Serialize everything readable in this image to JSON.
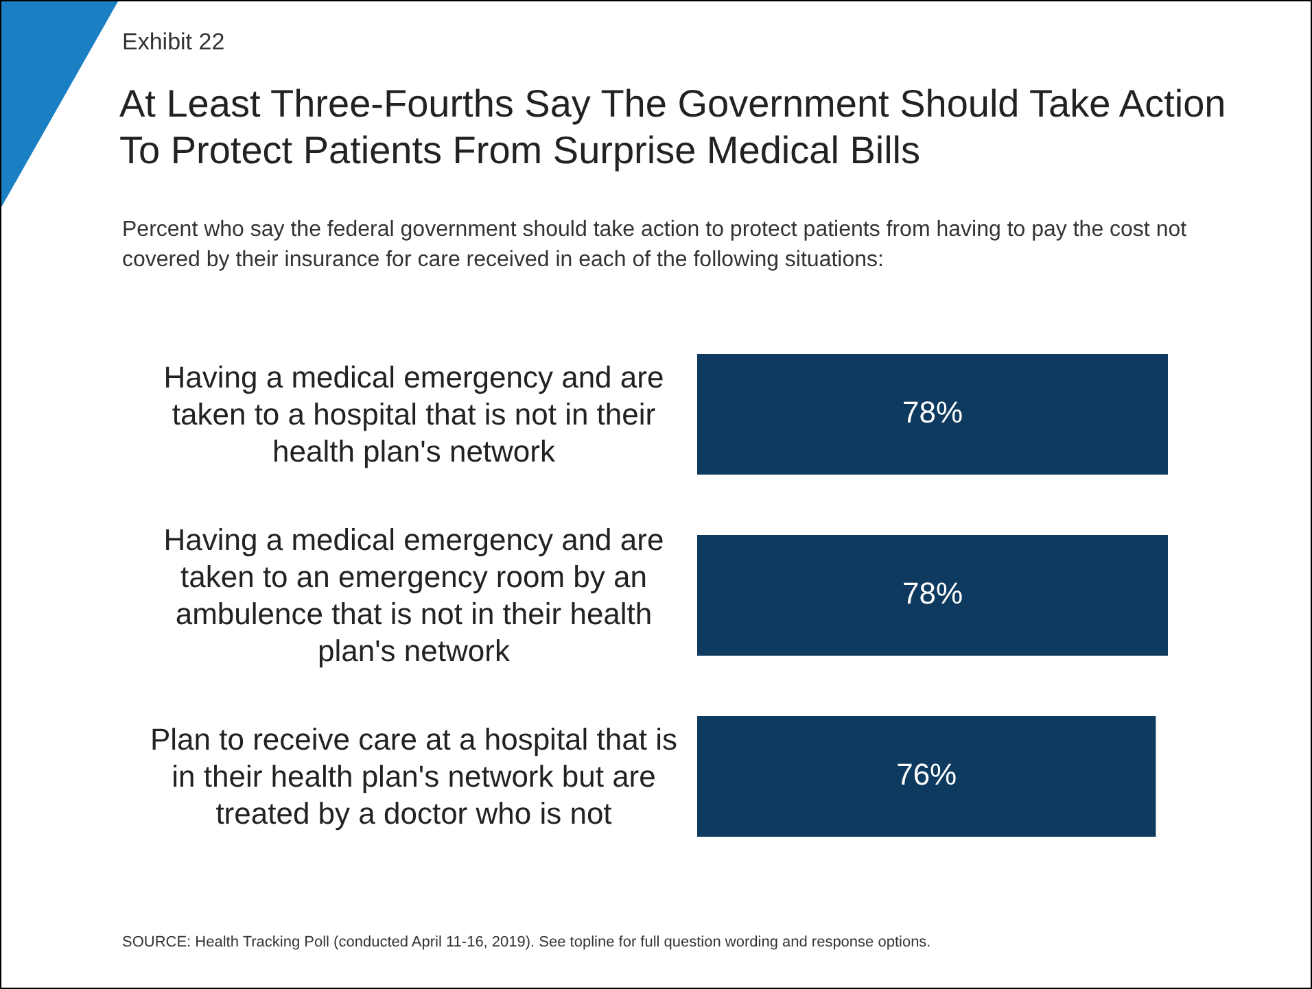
{
  "chart_data": {
    "type": "bar",
    "orientation": "horizontal",
    "title": "At Least Three-Fourths Say The Government Should Take Action To Protect Patients From Surprise Medical Bills",
    "subtitle": "Percent who say the federal government should take action to protect patients from having to pay the cost not covered by their insurance for care received in each of the following situations:",
    "categories": [
      "Having a medical emergency and are taken to a hospital that is not in their health plan's network",
      "Having a medical emergency and are taken to an emergency room by an ambulence that is not in their health plan's network",
      "Plan to receive care at a hospital that is in their health plan's network but are treated by a doctor who is not"
    ],
    "values": [
      78,
      78,
      76
    ],
    "color": "#0f3a5f",
    "data_labels": true,
    "value_labels": [
      "78%",
      "78%",
      "76%"
    ],
    "tick_labels": "y",
    "legend": false,
    "annotations": [
      "Exhibit 22",
      "SOURCE: Health Tracking Poll (conducted April 11-16, 2019). See topline for full question wording and response options."
    ]
  }
}
